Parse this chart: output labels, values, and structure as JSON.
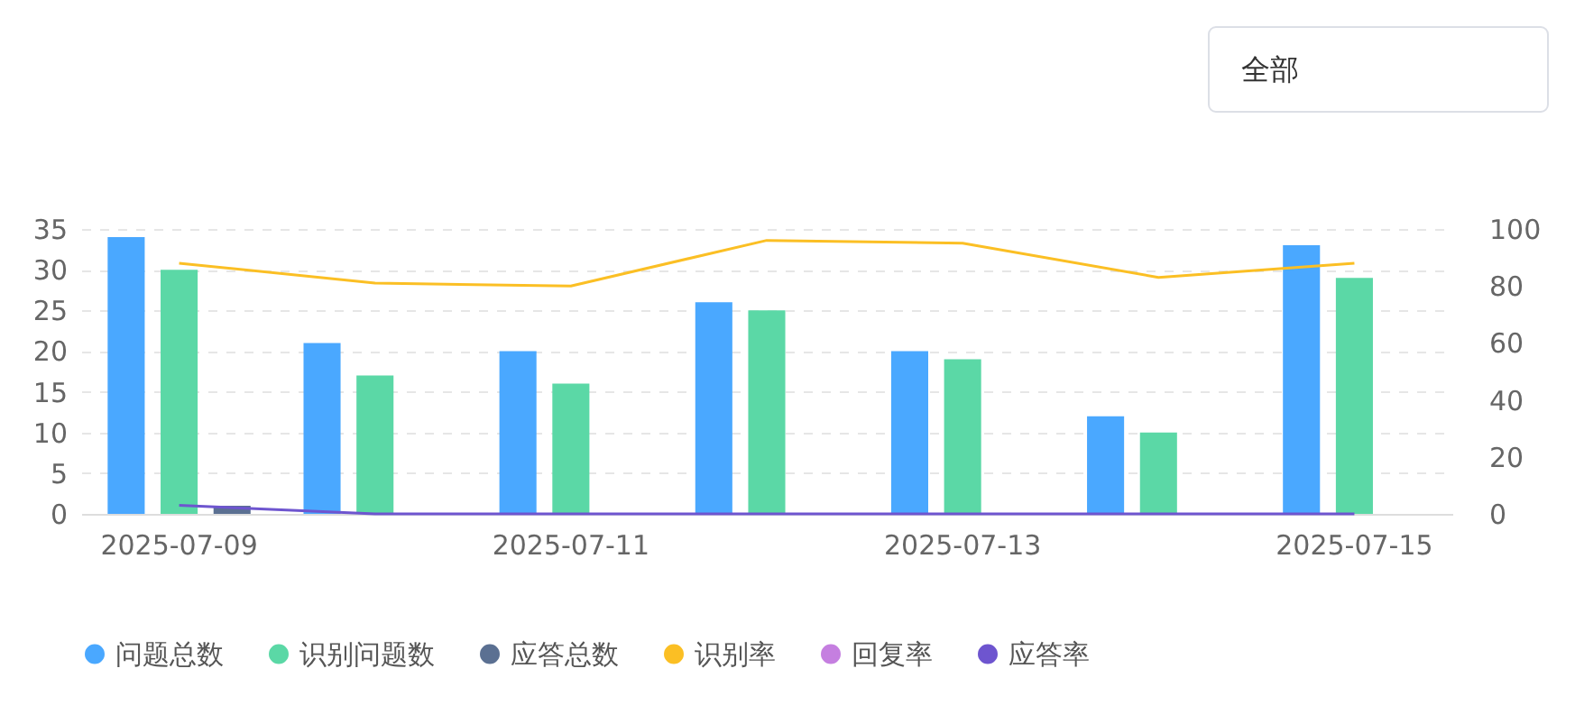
{
  "chart_data": {
    "type": "bar",
    "categories": [
      "2025-07-09",
      null,
      "2025-07-11",
      null,
      "2025-07-13",
      null,
      "2025-07-15"
    ],
    "series": [
      {
        "name": "问题总数",
        "color": "#4aa8ff",
        "values": [
          34,
          21,
          20,
          26,
          20,
          12,
          33
        ]
      },
      {
        "name": "识别问题数",
        "color": "#5bd8a6",
        "values": [
          30,
          17,
          16,
          25,
          19,
          10,
          29
        ]
      },
      {
        "name": "应答总数",
        "color": "#5b7092",
        "values": [
          1,
          0,
          0,
          0,
          0,
          0,
          0
        ]
      },
      {
        "name": "识别率",
        "type": "line",
        "axis": "y2",
        "color": "#fbbf24",
        "values": [
          88,
          81,
          80,
          96,
          95,
          83,
          88
        ]
      },
      {
        "name": "回复率",
        "type": "line",
        "axis": "y2",
        "color": "#c57fe0",
        "values": [
          null,
          null,
          null,
          null,
          null,
          null,
          null
        ]
      },
      {
        "name": "应答率",
        "type": "line",
        "axis": "y2",
        "color": "#6e55cf",
        "values": [
          3,
          0,
          0,
          0,
          0,
          0,
          0
        ]
      }
    ],
    "ylim": [
      0,
      35
    ],
    "yticks": [
      0,
      5,
      10,
      15,
      20,
      25,
      30,
      35
    ],
    "y2lim": [
      0,
      100
    ],
    "y2ticks": [
      0,
      20,
      40,
      60,
      80,
      100
    ],
    "grid": "y",
    "legend": "bottom",
    "marker": "none",
    "line_style": "solid",
    "annotations": [
      "全部"
    ]
  }
}
